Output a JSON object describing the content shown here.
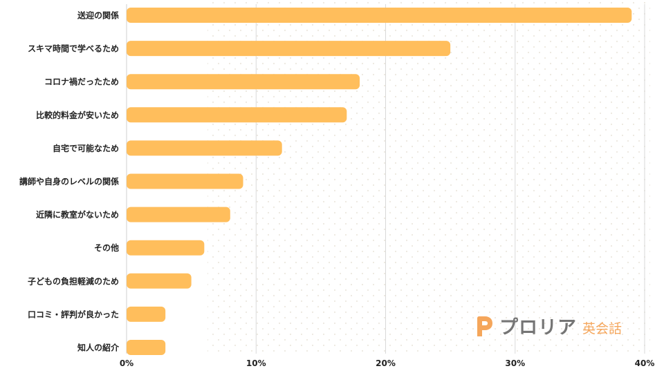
{
  "chart_data": {
    "type": "bar",
    "orientation": "horizontal",
    "categories": [
      "送迎の関係",
      "スキマ時間で学べるため",
      "コロナ禍だったため",
      "比較的料金が安いため",
      "自宅で可能なため",
      "講師や自身のレベルの関係",
      "近隣に教室がないため",
      "その他",
      "子どもの負担軽減のため",
      "口コミ・評判が良かった",
      "知人の紹介"
    ],
    "values": [
      39,
      25,
      18,
      17,
      12,
      9,
      8,
      6,
      5,
      3,
      3
    ],
    "xlim": [
      0,
      40
    ],
    "xticks": [
      0,
      10,
      20,
      30,
      40
    ],
    "tick_labels": [
      "0%",
      "10%",
      "20%",
      "30%",
      "40%"
    ],
    "unit": "%",
    "grid": true,
    "bar_color": "#ffbe5c",
    "grid_color": "#d9d9d9"
  },
  "logo": {
    "name": "プロリア",
    "sub": "英会話",
    "accent_color": "#f5a65b",
    "text_color": "#757575"
  }
}
